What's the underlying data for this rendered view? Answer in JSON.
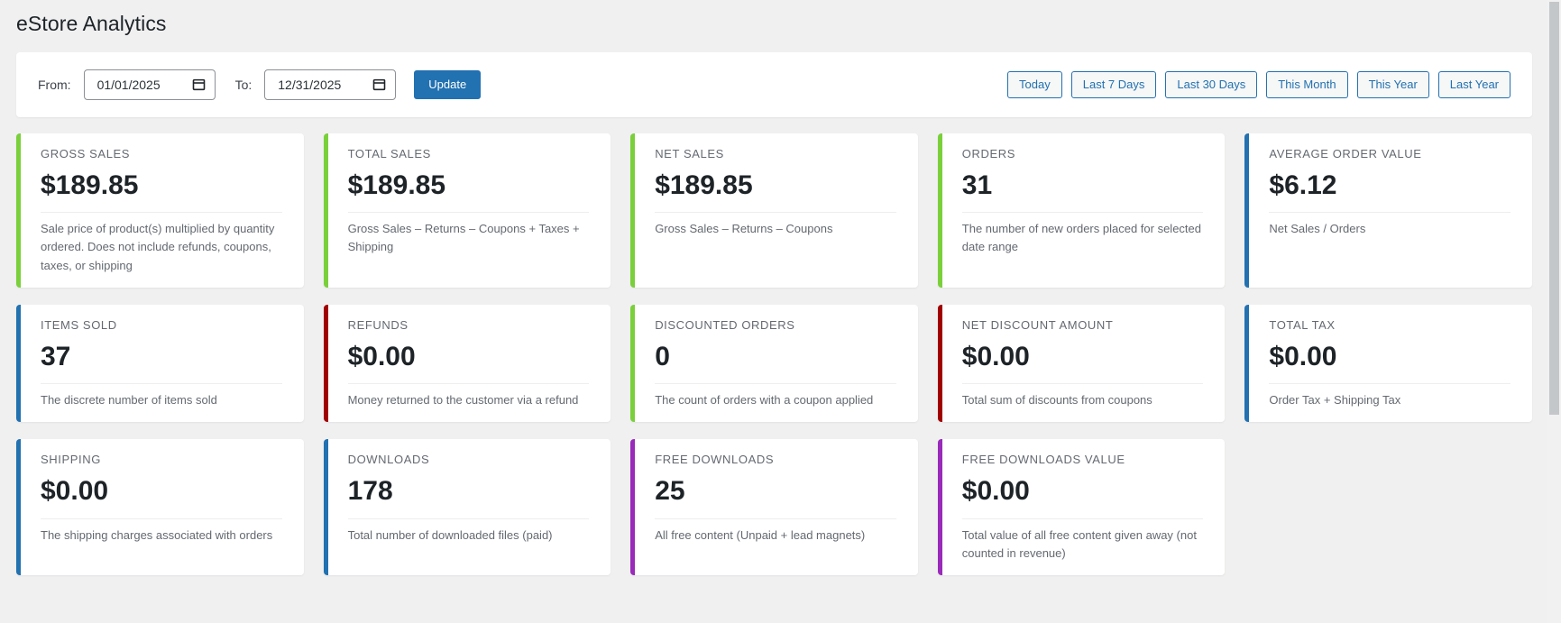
{
  "page": {
    "title": "eStore Analytics"
  },
  "filter_bar": {
    "from_label": "From:",
    "from_value": "01/01/2025",
    "to_label": "To:",
    "to_value": "12/31/2025",
    "update_label": "Update",
    "quick_ranges": [
      "Today",
      "Last 7 Days",
      "Last 30 Days",
      "This Month",
      "This Year",
      "Last Year"
    ]
  },
  "colors": {
    "green": "#7ad03a",
    "blue": "#2271b1",
    "red": "#a00000",
    "purple": "#9a2aba",
    "accent_blue": "#2271b1"
  },
  "cards": [
    {
      "label": "GROSS SALES",
      "value": "$189.85",
      "description": "Sale price of product(s) multiplied by quantity ordered. Does not include refunds, coupons, taxes, or shipping",
      "accent": "green"
    },
    {
      "label": "TOTAL SALES",
      "value": "$189.85",
      "description": "Gross Sales – Returns – Coupons + Taxes + Shipping",
      "accent": "green"
    },
    {
      "label": "NET SALES",
      "value": "$189.85",
      "description": "Gross Sales – Returns – Coupons",
      "accent": "green"
    },
    {
      "label": "ORDERS",
      "value": "31",
      "description": "The number of new orders placed for selected date range",
      "accent": "green"
    },
    {
      "label": "AVERAGE ORDER VALUE",
      "value": "$6.12",
      "description": "Net Sales / Orders",
      "accent": "blue"
    },
    {
      "label": "ITEMS SOLD",
      "value": "37",
      "description": "The discrete number of items sold",
      "accent": "blue"
    },
    {
      "label": "REFUNDS",
      "value": "$0.00",
      "description": "Money returned to the customer via a refund",
      "accent": "red"
    },
    {
      "label": "DISCOUNTED ORDERS",
      "value": "0",
      "description": "The count of orders with a coupon applied",
      "accent": "green"
    },
    {
      "label": "NET DISCOUNT AMOUNT",
      "value": "$0.00",
      "description": "Total sum of discounts from coupons",
      "accent": "red"
    },
    {
      "label": "TOTAL TAX",
      "value": "$0.00",
      "description": "Order Tax + Shipping Tax",
      "accent": "blue"
    },
    {
      "label": "SHIPPING",
      "value": "$0.00",
      "description": "The shipping charges associated with orders",
      "accent": "blue"
    },
    {
      "label": "DOWNLOADS",
      "value": "178",
      "description": "Total number of downloaded files (paid)",
      "accent": "blue"
    },
    {
      "label": "FREE DOWNLOADS",
      "value": "25",
      "description": "All free content (Unpaid + lead magnets)",
      "accent": "purple"
    },
    {
      "label": "FREE DOWNLOADS VALUE",
      "value": "$0.00",
      "description": "Total value of all free content given away (not counted in revenue)",
      "accent": "purple"
    }
  ]
}
